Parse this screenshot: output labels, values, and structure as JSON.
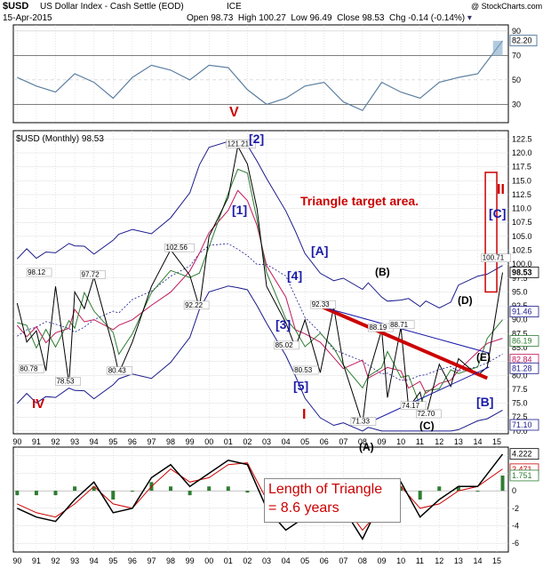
{
  "header": {
    "symbol": "$USD",
    "name": "US Dollar Index - Cash Settle (EOD)",
    "exchange": "ICE",
    "watermark": "@ StockCharts.com",
    "date": "15-Apr-2015",
    "open_label": "Open",
    "open": "98.73",
    "high_label": "High",
    "high": "100.27",
    "low_label": "Low",
    "low": "96.49",
    "close_label": "Close",
    "close": "98.53",
    "chg_label": "Chg",
    "chg": "-0.14 (-0.14%)"
  },
  "chart_data": [
    {
      "type": "line",
      "panel": "rsi",
      "yticks": [
        30,
        50,
        70,
        90
      ],
      "ylim": [
        15,
        95
      ],
      "last_value": "82.20",
      "x": [
        1990,
        1991,
        1992,
        1993,
        1994,
        1995,
        1996,
        1997,
        1998,
        1999,
        2000,
        2001,
        2002,
        2003,
        2004,
        2005,
        2006,
        2007,
        2008,
        2009,
        2010,
        2011,
        2012,
        2013,
        2014,
        2015.3
      ],
      "values": [
        52,
        45,
        40,
        55,
        48,
        35,
        52,
        62,
        58,
        50,
        62,
        60,
        42,
        30,
        35,
        45,
        48,
        32,
        25,
        48,
        40,
        35,
        48,
        52,
        55,
        82
      ]
    },
    {
      "type": "line",
      "panel": "price",
      "legend": "$USD (Monthly) 98.53",
      "ylim": [
        69.5,
        124
      ],
      "yticks": [
        "70.0",
        "72.5",
        "75.0",
        "77.5",
        "80.0",
        "82.5",
        "85.0",
        "87.5",
        "90.0",
        "92.5",
        "95.0",
        "97.5",
        "100.0",
        "102.5",
        "105.0",
        "107.5",
        "110.0",
        "112.5",
        "115.0",
        "117.5",
        "120.0",
        "122.5"
      ],
      "right_labels": [
        {
          "text": "98.53",
          "value": 98.53,
          "color": "#000000"
        },
        {
          "text": "91.46",
          "value": 91.46,
          "color": "#1a1a8c"
        },
        {
          "text": "86.19",
          "value": 86.19,
          "color": "#2e7d32"
        },
        {
          "text": "82.84",
          "value": 82.84,
          "color": "#c2185b"
        },
        {
          "text": "81.28",
          "value": 81.28,
          "color": "#1a1a8c"
        },
        {
          "text": "71.10",
          "value": 71.1,
          "color": "#1a1a8c"
        }
      ],
      "x": [
        1990,
        1990.5,
        1991,
        1991.5,
        1992,
        1992.7,
        1993,
        1993.5,
        1994,
        1995,
        1995.3,
        1996,
        1997,
        1998,
        1999,
        1999.5,
        2000,
        2001,
        2001.5,
        2002,
        2002.5,
        2003,
        2004,
        2004.5,
        2005,
        2005.8,
        2006.5,
        2007,
        2008,
        2008.3,
        2009,
        2009.3,
        2010,
        2010.4,
        2011,
        2011.3,
        2012,
        2012.6,
        2013,
        2014,
        2014.5,
        2015.3
      ],
      "values": [
        93,
        86,
        88,
        80.8,
        96,
        78.5,
        95,
        92,
        97.7,
        85,
        80.4,
        86,
        96,
        102.6,
        98,
        92.2,
        105,
        112,
        121.2,
        118,
        110,
        96,
        89.5,
        85,
        90,
        80.5,
        92.3,
        82,
        71.3,
        80,
        88.2,
        76,
        88.7,
        74.2,
        77,
        72.7,
        82,
        78,
        83,
        80,
        81.5,
        98.5
      ]
    },
    {
      "type": "bar",
      "panel": "macd",
      "yticks": [
        -6,
        -4,
        -2,
        0,
        2,
        4
      ],
      "ylim": [
        -7,
        5
      ],
      "right_labels": [
        "4.222",
        "2.471",
        "1.751"
      ],
      "x": [
        1990,
        1991,
        1992,
        1993,
        1994,
        1995,
        1996,
        1997,
        1998,
        1999,
        2000,
        2001,
        2002,
        2003,
        2004,
        2005,
        2006,
        2007,
        2008,
        2009,
        2010,
        2011,
        2012,
        2013,
        2014,
        2015.3
      ],
      "macd": [
        -2,
        -3,
        -3.5,
        -1,
        1,
        -2.5,
        -2,
        1.5,
        3,
        0.5,
        2,
        3.5,
        3,
        -2,
        -4.5,
        -3,
        0,
        -2,
        -5.5,
        -1,
        1,
        -3,
        -1,
        0.5,
        0.5,
        4.2
      ],
      "signal": [
        -1.5,
        -2.5,
        -3,
        -1.5,
        0.5,
        -1.5,
        -2,
        0.5,
        2.5,
        1,
        1.5,
        3,
        3.2,
        -1,
        -3.5,
        -3,
        -0.5,
        -1.5,
        -4.5,
        -2,
        0.5,
        -2,
        -1.5,
        0,
        0.5,
        2.5
      ],
      "histogram": [
        -0.5,
        -0.5,
        -0.5,
        0.5,
        0.5,
        -1,
        0,
        1,
        0.5,
        -0.5,
        0.5,
        0.5,
        -0.2,
        -1,
        -1,
        0,
        0.5,
        -0.5,
        -1,
        1,
        0.5,
        -1,
        0.5,
        0.5,
        0,
        1.75
      ]
    }
  ],
  "xaxis": {
    "labels": [
      "90",
      "91",
      "92",
      "93",
      "94",
      "95",
      "96",
      "97",
      "98",
      "99",
      "00",
      "01",
      "02",
      "03",
      "04",
      "05",
      "06",
      "07",
      "08",
      "09",
      "10",
      "11",
      "12",
      "13",
      "14",
      "15"
    ]
  },
  "annotations": {
    "roman_v": "V",
    "roman_iv": "IV",
    "roman_i": "I",
    "roman_ii": "II",
    "label_1": "[1]",
    "label_2": "[2]",
    "label_3": "[3]",
    "label_4": "[4]",
    "label_5": "[5]",
    "label_A_sq": "[A]",
    "label_B_sq": "[B]",
    "label_C_sq": "[C]",
    "label_A_par": "(A)",
    "label_B_par": "(B)",
    "label_C_par": "(C)",
    "label_D_par": "(D)",
    "label_E_par": "(E)",
    "triangle_target": "Triangle target area.",
    "triangle_length_line1": "Length of Triangle",
    "triangle_length_line2": "= 8.6 years",
    "v_98_12": "98.12",
    "v_97_72": "97.72",
    "v_80_78": "80.78",
    "v_78_53": "78.53",
    "v_80_43": "80.43",
    "v_102_56": "102.56",
    "v_92_22": "92.22",
    "v_121_21": "121.21",
    "v_85_02": "85.02",
    "v_80_53": "80.53",
    "v_92_33": "92.33",
    "v_71_33": "71.33",
    "v_88_19": "88.19",
    "v_88_71": "88.71",
    "v_74_17": "74.17",
    "v_72_70": "72.70",
    "v_100_71": "100.71"
  },
  "colors": {
    "price": "#000000",
    "bollinger": "#1a1a8c",
    "ma_fast": "#2e7d32",
    "ma_slow": "#c2185b",
    "wave_red": "#cc0000",
    "wave_blue": "#1a1aa8",
    "hist": "#2e7d32"
  }
}
